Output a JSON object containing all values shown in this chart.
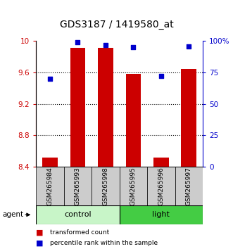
{
  "title": "GDS3187 / 1419580_at",
  "samples": [
    "GSM265984",
    "GSM265993",
    "GSM265998",
    "GSM265995",
    "GSM265996",
    "GSM265997"
  ],
  "bar_values": [
    8.52,
    9.91,
    9.91,
    9.58,
    8.52,
    9.65
  ],
  "percentile_values": [
    70,
    99,
    97,
    95,
    72,
    96
  ],
  "bar_color": "#CC0000",
  "percentile_color": "#0000CC",
  "ylim_left": [
    8.4,
    10.0
  ],
  "ylim_right": [
    0,
    100
  ],
  "yticks_left": [
    8.4,
    8.8,
    9.2,
    9.6,
    10.0
  ],
  "ytick_labels_left": [
    "8.4",
    "8.8",
    "9.2",
    "9.6",
    "10"
  ],
  "yticks_right": [
    0,
    25,
    50,
    75,
    100
  ],
  "ytick_labels_right": [
    "0",
    "25",
    "50",
    "75",
    "100%"
  ],
  "dotted_grid": [
    8.8,
    9.2,
    9.6
  ],
  "bar_width": 0.55,
  "control_color": "#c8f5c8",
  "light_color": "#44cc44",
  "sample_box_color": "#cccccc",
  "legend_items": [
    {
      "color": "#CC0000",
      "label": "transformed count"
    },
    {
      "color": "#0000CC",
      "label": "percentile rank within the sample"
    }
  ],
  "background_color": "#ffffff"
}
